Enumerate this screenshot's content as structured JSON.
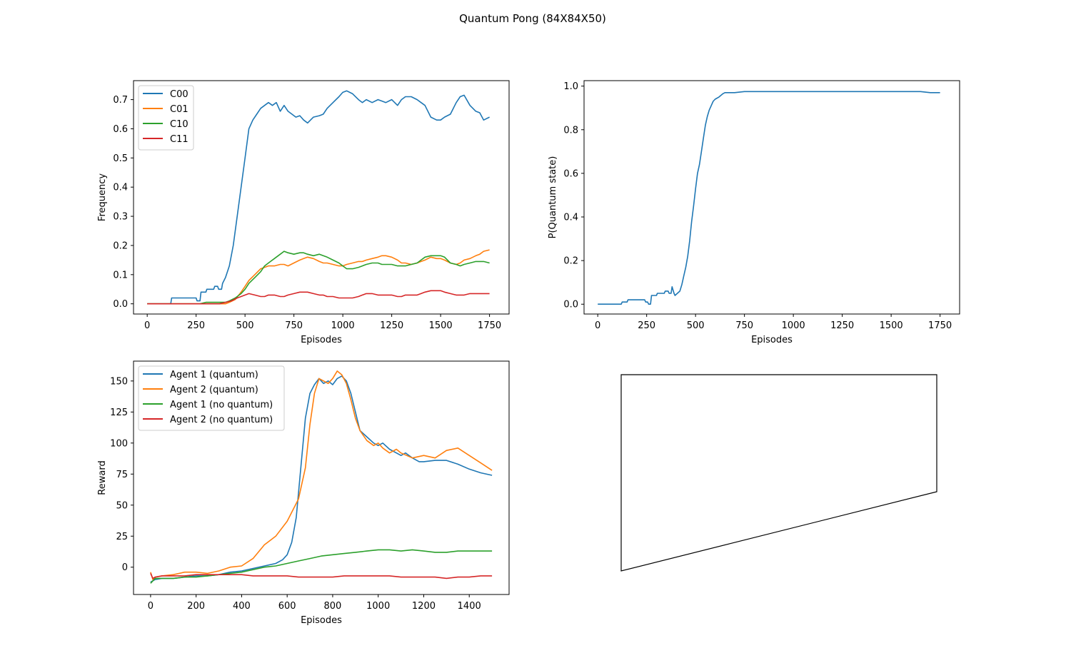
{
  "figure": {
    "title": "Quantum Pong (84X84X50)"
  },
  "chart_data": [
    {
      "type": "line",
      "xlabel": "Episodes",
      "ylabel": "Frequency",
      "xlim": [
        -70,
        1850
      ],
      "ylim": [
        -0.035,
        0.765
      ],
      "xticks": [
        0,
        250,
        500,
        750,
        1000,
        1250,
        1500,
        1750
      ],
      "yticks": [
        0.0,
        0.1,
        0.2,
        0.3,
        0.4,
        0.5,
        0.6,
        0.7
      ],
      "ytick_decimals": 1,
      "legend": "upper-left",
      "series": [
        {
          "name": "C00",
          "color": "#1f77b4",
          "x": [
            0,
            120,
            125,
            250,
            255,
            270,
            275,
            300,
            305,
            340,
            345,
            360,
            365,
            380,
            385,
            400,
            420,
            440,
            460,
            480,
            500,
            520,
            540,
            560,
            580,
            600,
            620,
            640,
            660,
            680,
            700,
            720,
            740,
            760,
            780,
            800,
            820,
            850,
            880,
            900,
            920,
            950,
            980,
            1000,
            1020,
            1050,
            1080,
            1100,
            1120,
            1150,
            1180,
            1200,
            1220,
            1250,
            1280,
            1300,
            1320,
            1350,
            1380,
            1400,
            1420,
            1450,
            1480,
            1500,
            1520,
            1550,
            1580,
            1600,
            1620,
            1650,
            1680,
            1700,
            1720,
            1750
          ],
          "y": [
            0,
            0,
            0.02,
            0.02,
            0.01,
            0.01,
            0.04,
            0.04,
            0.05,
            0.05,
            0.06,
            0.06,
            0.05,
            0.05,
            0.07,
            0.09,
            0.13,
            0.2,
            0.3,
            0.4,
            0.5,
            0.6,
            0.63,
            0.65,
            0.67,
            0.68,
            0.69,
            0.68,
            0.69,
            0.66,
            0.68,
            0.66,
            0.65,
            0.64,
            0.645,
            0.63,
            0.62,
            0.64,
            0.645,
            0.65,
            0.67,
            0.69,
            0.71,
            0.725,
            0.73,
            0.72,
            0.7,
            0.69,
            0.7,
            0.69,
            0.7,
            0.695,
            0.69,
            0.7,
            0.68,
            0.7,
            0.71,
            0.71,
            0.7,
            0.69,
            0.68,
            0.64,
            0.63,
            0.63,
            0.64,
            0.65,
            0.69,
            0.71,
            0.715,
            0.68,
            0.66,
            0.655,
            0.63,
            0.64
          ]
        },
        {
          "name": "C01",
          "color": "#ff7f0e",
          "x": [
            0,
            400,
            420,
            450,
            480,
            500,
            520,
            550,
            580,
            600,
            620,
            650,
            680,
            700,
            720,
            750,
            780,
            800,
            820,
            850,
            880,
            900,
            920,
            950,
            980,
            1000,
            1020,
            1050,
            1080,
            1100,
            1120,
            1150,
            1180,
            1200,
            1220,
            1250,
            1280,
            1300,
            1320,
            1350,
            1380,
            1400,
            1420,
            1450,
            1480,
            1500,
            1520,
            1550,
            1580,
            1600,
            1620,
            1650,
            1680,
            1700,
            1720,
            1750
          ],
          "y": [
            0,
            0,
            0.005,
            0.015,
            0.04,
            0.06,
            0.08,
            0.1,
            0.12,
            0.125,
            0.13,
            0.13,
            0.135,
            0.135,
            0.13,
            0.14,
            0.15,
            0.155,
            0.16,
            0.155,
            0.145,
            0.14,
            0.14,
            0.135,
            0.13,
            0.13,
            0.135,
            0.14,
            0.145,
            0.145,
            0.15,
            0.155,
            0.16,
            0.165,
            0.165,
            0.16,
            0.15,
            0.14,
            0.14,
            0.135,
            0.14,
            0.145,
            0.15,
            0.16,
            0.155,
            0.155,
            0.15,
            0.14,
            0.135,
            0.14,
            0.15,
            0.155,
            0.165,
            0.17,
            0.18,
            0.185
          ]
        },
        {
          "name": "C10",
          "color": "#2ca02c",
          "x": [
            0,
            270,
            300,
            350,
            400,
            420,
            450,
            480,
            500,
            520,
            550,
            580,
            600,
            620,
            650,
            680,
            700,
            720,
            750,
            780,
            800,
            820,
            850,
            880,
            900,
            920,
            950,
            980,
            1000,
            1020,
            1050,
            1080,
            1100,
            1120,
            1150,
            1180,
            1200,
            1220,
            1250,
            1280,
            1300,
            1320,
            1350,
            1380,
            1400,
            1420,
            1450,
            1480,
            1500,
            1520,
            1550,
            1580,
            1600,
            1620,
            1650,
            1680,
            1700,
            1720,
            1750
          ],
          "y": [
            0,
            0,
            0.005,
            0.005,
            0.005,
            0.01,
            0.02,
            0.035,
            0.05,
            0.07,
            0.09,
            0.11,
            0.13,
            0.14,
            0.155,
            0.17,
            0.18,
            0.175,
            0.17,
            0.175,
            0.175,
            0.17,
            0.165,
            0.17,
            0.165,
            0.16,
            0.15,
            0.14,
            0.13,
            0.12,
            0.12,
            0.125,
            0.13,
            0.135,
            0.14,
            0.14,
            0.135,
            0.135,
            0.135,
            0.13,
            0.13,
            0.13,
            0.135,
            0.14,
            0.15,
            0.16,
            0.165,
            0.165,
            0.165,
            0.16,
            0.14,
            0.135,
            0.13,
            0.135,
            0.14,
            0.145,
            0.145,
            0.145,
            0.14
          ]
        },
        {
          "name": "C11",
          "color": "#d62728",
          "x": [
            0,
            370,
            400,
            430,
            460,
            480,
            500,
            520,
            550,
            580,
            600,
            620,
            650,
            680,
            700,
            720,
            750,
            780,
            800,
            820,
            850,
            880,
            900,
            920,
            950,
            980,
            1000,
            1020,
            1050,
            1080,
            1100,
            1120,
            1150,
            1180,
            1200,
            1220,
            1250,
            1280,
            1300,
            1320,
            1350,
            1380,
            1400,
            1420,
            1450,
            1480,
            1500,
            1520,
            1550,
            1580,
            1600,
            1620,
            1650,
            1680,
            1700,
            1720,
            1750
          ],
          "y": [
            0,
            0,
            0.005,
            0.01,
            0.02,
            0.025,
            0.03,
            0.035,
            0.03,
            0.025,
            0.025,
            0.03,
            0.03,
            0.025,
            0.025,
            0.03,
            0.035,
            0.04,
            0.04,
            0.04,
            0.035,
            0.03,
            0.03,
            0.025,
            0.025,
            0.02,
            0.02,
            0.02,
            0.02,
            0.025,
            0.03,
            0.035,
            0.035,
            0.03,
            0.03,
            0.03,
            0.03,
            0.025,
            0.025,
            0.03,
            0.03,
            0.03,
            0.035,
            0.04,
            0.045,
            0.045,
            0.045,
            0.04,
            0.035,
            0.03,
            0.03,
            0.03,
            0.035,
            0.035,
            0.035,
            0.035,
            0.035
          ]
        }
      ]
    },
    {
      "type": "line",
      "xlabel": "Episodes",
      "ylabel": "P(Quantum state)",
      "xlim": [
        -70,
        1850
      ],
      "ylim": [
        -0.045,
        1.025
      ],
      "xticks": [
        0,
        250,
        500,
        750,
        1000,
        1250,
        1500,
        1750
      ],
      "yticks": [
        0.0,
        0.2,
        0.4,
        0.6,
        0.8,
        1.0
      ],
      "ytick_decimals": 1,
      "legend": "none",
      "series": [
        {
          "color": "#1f77b4",
          "x": [
            0,
            120,
            125,
            150,
            155,
            200,
            205,
            240,
            245,
            255,
            260,
            270,
            275,
            300,
            305,
            340,
            345,
            360,
            365,
            375,
            380,
            390,
            395,
            420,
            430,
            440,
            450,
            460,
            470,
            480,
            490,
            500,
            510,
            520,
            530,
            540,
            550,
            560,
            570,
            580,
            590,
            600,
            620,
            640,
            650,
            700,
            750,
            800,
            850,
            900,
            950,
            1000,
            1050,
            1100,
            1150,
            1200,
            1250,
            1300,
            1350,
            1400,
            1450,
            1500,
            1550,
            1600,
            1650,
            1700,
            1750
          ],
          "y": [
            0,
            0,
            0.01,
            0.01,
            0.02,
            0.02,
            0.02,
            0.02,
            0.01,
            0.01,
            0,
            0,
            0.04,
            0.04,
            0.05,
            0.05,
            0.06,
            0.06,
            0.05,
            0.05,
            0.08,
            0.05,
            0.04,
            0.06,
            0.09,
            0.13,
            0.17,
            0.22,
            0.29,
            0.38,
            0.45,
            0.53,
            0.6,
            0.64,
            0.7,
            0.76,
            0.82,
            0.86,
            0.89,
            0.91,
            0.93,
            0.94,
            0.95,
            0.965,
            0.97,
            0.97,
            0.975,
            0.975,
            0.975,
            0.975,
            0.975,
            0.975,
            0.975,
            0.975,
            0.975,
            0.975,
            0.975,
            0.975,
            0.975,
            0.975,
            0.975,
            0.975,
            0.975,
            0.975,
            0.975,
            0.97,
            0.97
          ]
        }
      ]
    },
    {
      "type": "line",
      "xlabel": "Episodes",
      "ylabel": "Reward",
      "xlim": [
        -75,
        1575
      ],
      "ylim": [
        -22,
        166
      ],
      "xticks": [
        0,
        200,
        400,
        600,
        800,
        1000,
        1200,
        1400
      ],
      "yticks": [
        0,
        25,
        50,
        75,
        100,
        125,
        150
      ],
      "ytick_decimals": 0,
      "legend": "upper-left",
      "series": [
        {
          "name": "Agent 1 (quantum)",
          "color": "#1f77b4",
          "x": [
            0,
            20,
            50,
            100,
            150,
            200,
            250,
            300,
            350,
            400,
            450,
            500,
            550,
            580,
            600,
            620,
            640,
            660,
            680,
            700,
            720,
            740,
            760,
            780,
            800,
            820,
            840,
            860,
            880,
            900,
            920,
            950,
            980,
            1000,
            1020,
            1050,
            1080,
            1100,
            1120,
            1150,
            1180,
            1200,
            1250,
            1300,
            1350,
            1400,
            1450,
            1500
          ],
          "y": [
            -12,
            -10,
            -9,
            -9,
            -8,
            -7,
            -7,
            -6,
            -4,
            -3,
            -1,
            1,
            3,
            6,
            10,
            20,
            40,
            80,
            120,
            140,
            147,
            152,
            148,
            150,
            147,
            152,
            154,
            150,
            140,
            125,
            110,
            105,
            100,
            98,
            100,
            95,
            92,
            90,
            92,
            88,
            85,
            85,
            86,
            86,
            83,
            79,
            76,
            74
          ]
        },
        {
          "name": "Agent 2 (quantum)",
          "color": "#ff7f0e",
          "x": [
            0,
            10,
            20,
            50,
            100,
            150,
            200,
            250,
            300,
            350,
            400,
            450,
            500,
            550,
            600,
            650,
            680,
            700,
            720,
            740,
            760,
            780,
            800,
            820,
            840,
            860,
            880,
            900,
            920,
            950,
            980,
            1000,
            1020,
            1050,
            1080,
            1100,
            1150,
            1200,
            1250,
            1300,
            1350,
            1400,
            1450,
            1500
          ],
          "y": [
            -4,
            -10,
            -8,
            -7,
            -6,
            -4,
            -4,
            -5,
            -3,
            0,
            1,
            7,
            18,
            25,
            37,
            55,
            80,
            115,
            140,
            152,
            150,
            148,
            152,
            158,
            155,
            148,
            135,
            120,
            110,
            102,
            98,
            100,
            96,
            92,
            95,
            92,
            88,
            90,
            88,
            94,
            96,
            90,
            84,
            78
          ]
        },
        {
          "name": "Agent 1 (no quantum)",
          "color": "#2ca02c",
          "x": [
            0,
            20,
            50,
            100,
            150,
            200,
            250,
            300,
            350,
            400,
            450,
            500,
            550,
            600,
            650,
            700,
            750,
            800,
            850,
            900,
            950,
            1000,
            1050,
            1100,
            1150,
            1200,
            1250,
            1300,
            1350,
            1400,
            1450,
            1500
          ],
          "y": [
            -13,
            -9,
            -9,
            -9,
            -8,
            -8,
            -7,
            -6,
            -5,
            -4,
            -2,
            0,
            1,
            3,
            5,
            7,
            9,
            10,
            11,
            12,
            13,
            14,
            14,
            13,
            14,
            13,
            12,
            12,
            13,
            13,
            13,
            13
          ]
        },
        {
          "name": "Agent 2 (no quantum)",
          "color": "#d62728",
          "x": [
            0,
            10,
            20,
            50,
            100,
            150,
            200,
            250,
            300,
            350,
            400,
            450,
            500,
            550,
            600,
            650,
            700,
            750,
            800,
            850,
            900,
            950,
            1000,
            1050,
            1100,
            1150,
            1200,
            1250,
            1300,
            1350,
            1400,
            1450,
            1500
          ],
          "y": [
            -5,
            -9,
            -8,
            -7,
            -7,
            -7,
            -6,
            -6,
            -6,
            -6,
            -6,
            -7,
            -7,
            -7,
            -7,
            -8,
            -8,
            -8,
            -8,
            -7,
            -7,
            -7,
            -7,
            -7,
            -8,
            -8,
            -8,
            -8,
            -9,
            -8,
            -8,
            -7,
            -7
          ]
        }
      ]
    }
  ]
}
